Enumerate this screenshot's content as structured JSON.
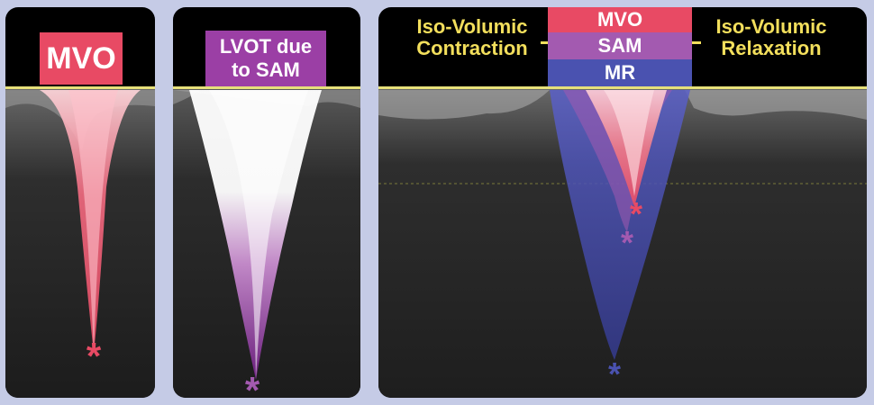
{
  "panels": {
    "mvo": {
      "label": "MVO",
      "color": "#e84a64",
      "star": "*"
    },
    "lvot": {
      "label_line1": "LVOT due",
      "label_line2": "to SAM",
      "color": "#9b3fa5",
      "star": "*"
    },
    "combined": {
      "left_label_line1": "Iso-Volumic",
      "left_label_line2": "Contraction",
      "right_label_line1": "Iso-Volumic",
      "right_label_line2": "Relaxation",
      "legend": [
        {
          "label": "MVO",
          "color": "#e84a64"
        },
        {
          "label": "SAM",
          "color": "#a35ab0"
        },
        {
          "label": "MR",
          "color": "#4a52b0"
        }
      ],
      "accent_yellow": "#f3df5c",
      "star": "*"
    }
  }
}
